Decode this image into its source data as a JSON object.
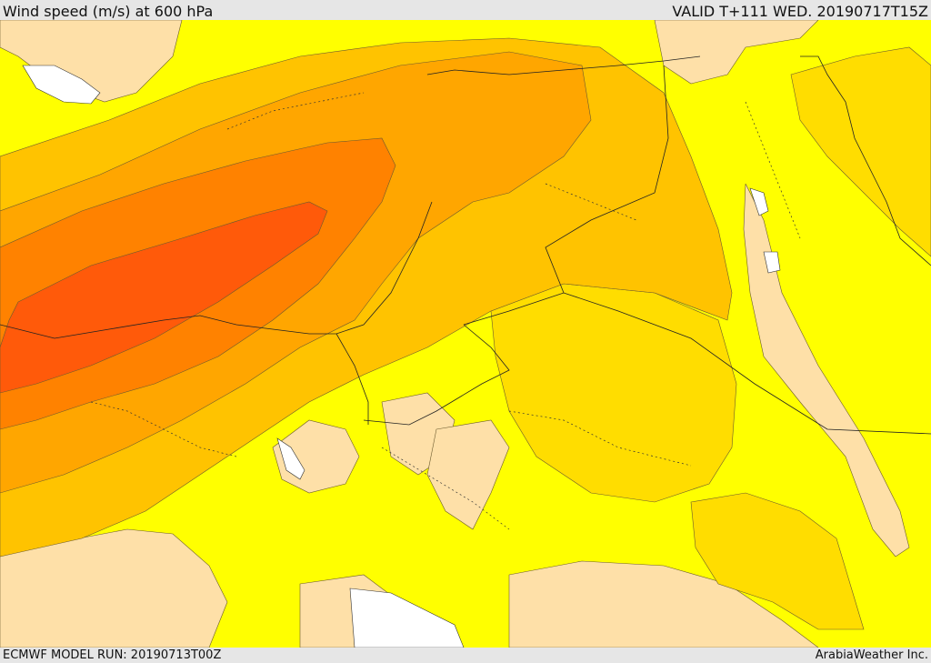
{
  "header": {
    "title": "Wind speed (m/s) at 600 hPa",
    "valid_time": "VALID T+111 WED. 20190717T15Z"
  },
  "footer": {
    "model_run": "ECMWF MODEL RUN: 20190713T00Z",
    "credit": "ArabiaWeather Inc."
  },
  "map": {
    "field": "wind speed 600 hPa",
    "colors": {
      "sea_land_none": "#ffffff",
      "calm": "#fee0a8",
      "light": "#ffff00",
      "moderate": "#ffdd00",
      "fresh": "#ffc300",
      "strong": "#ffa600",
      "stronger": "#ff8200",
      "jet_core": "#ff5a0a",
      "borders": "#222222"
    }
  }
}
